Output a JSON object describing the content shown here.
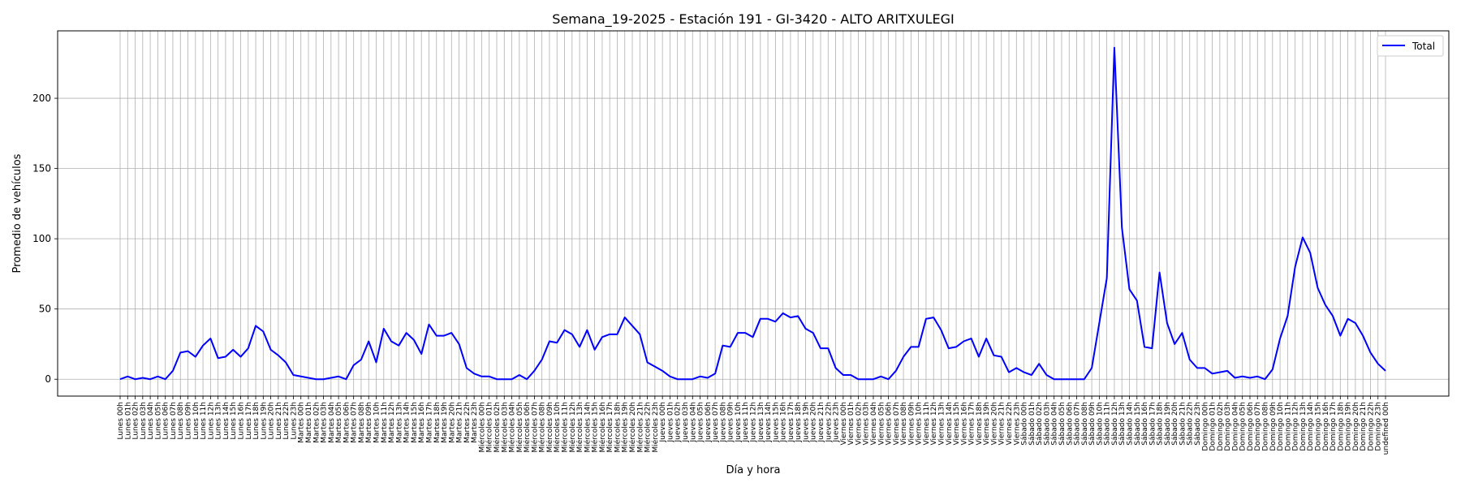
{
  "chart_data": {
    "type": "line",
    "title": "Semana_19-2025 - Estación 191 - GI-3420  - ALTO ARITXULEGI",
    "xlabel": "Día y hora",
    "ylabel": "Promedio de vehículos",
    "ylim": [
      -12,
      248
    ],
    "yticks": [
      0,
      50,
      100,
      150,
      200
    ],
    "grid": true,
    "legend_position": "top-right",
    "days": [
      "Lunes",
      "Martes",
      "Miércoles",
      "Jueves",
      "Viernes",
      "Sábado",
      "Domingo"
    ],
    "hour_format": "{day} {hh}h",
    "series": [
      {
        "name": "Total",
        "color": "#0000ff",
        "values": [
          0,
          2,
          0,
          1,
          0,
          2,
          0,
          6,
          19,
          20,
          16,
          24,
          29,
          15,
          16,
          21,
          16,
          22,
          38,
          34,
          21,
          17,
          12,
          3,
          2,
          1,
          0,
          0,
          1,
          2,
          0,
          10,
          14,
          27,
          12,
          36,
          27,
          24,
          33,
          28,
          18,
          39,
          31,
          31,
          33,
          25,
          8,
          4,
          2,
          2,
          0,
          0,
          0,
          3,
          0,
          6,
          14,
          27,
          26,
          35,
          32,
          23,
          35,
          21,
          30,
          32,
          32,
          44,
          38,
          32,
          12,
          9,
          6,
          2,
          0,
          0,
          0,
          2,
          1,
          4,
          24,
          23,
          33,
          33,
          30,
          43,
          43,
          41,
          47,
          44,
          45,
          36,
          33,
          22,
          22,
          8,
          3,
          3,
          0,
          0,
          0,
          2,
          0,
          6,
          16,
          23,
          23,
          43,
          44,
          35,
          22,
          23,
          27,
          29,
          16,
          29,
          17,
          16,
          5,
          8,
          5,
          3,
          11,
          3,
          0,
          0,
          0,
          0,
          0,
          8,
          40,
          72,
          236,
          108,
          64,
          56,
          23,
          22,
          76,
          40,
          25,
          33,
          14,
          8,
          8,
          4,
          5,
          6,
          1,
          2,
          1,
          2,
          0,
          7,
          29,
          45,
          80,
          101,
          90,
          65,
          53,
          45,
          31,
          43,
          40,
          31,
          19,
          11,
          6
        ]
      }
    ]
  }
}
